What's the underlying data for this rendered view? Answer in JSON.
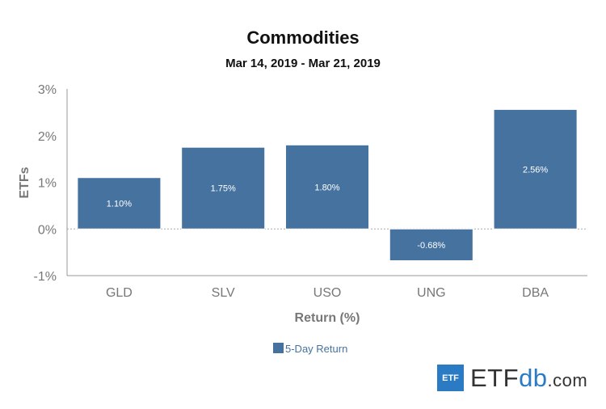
{
  "chart_data": {
    "type": "bar",
    "title": "Commodities",
    "subtitle": "Mar 14, 2019 - Mar 21, 2019",
    "xlabel": "Return (%)",
    "ylabel": "ETFs",
    "categories": [
      "GLD",
      "SLV",
      "USO",
      "UNG",
      "DBA"
    ],
    "series": [
      {
        "name": "5-Day Return",
        "color": "#4672a0",
        "values": [
          1.1,
          1.75,
          1.8,
          -0.68,
          2.56
        ],
        "labels": [
          "1.10%",
          "1.75%",
          "1.80%",
          "-0.68%",
          "2.56%"
        ]
      }
    ],
    "ylim": [
      -1,
      3
    ],
    "yticks": [
      3,
      2,
      1,
      0,
      -1
    ],
    "ytick_labels": [
      "3%",
      "2%",
      "1%",
      "0%",
      "-1%"
    ],
    "grid": false,
    "zero_line": "dotted",
    "legend_position": "bottom-center"
  },
  "branding": {
    "logo_box": "ETF",
    "logo_main": "ETF",
    "logo_db": "db",
    "logo_com": ".com"
  }
}
